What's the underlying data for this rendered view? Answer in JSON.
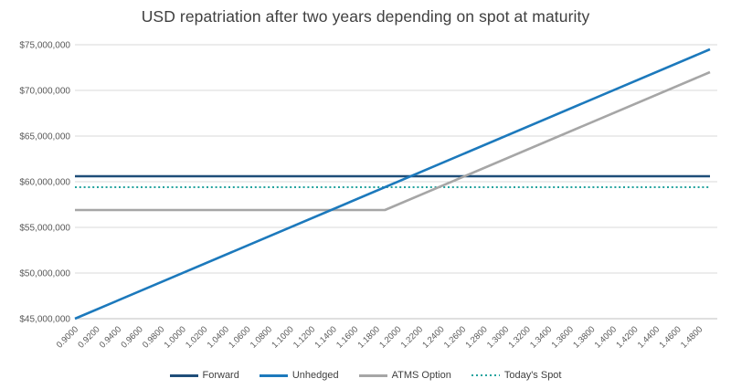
{
  "chart_data": {
    "type": "line",
    "title": "USD repatriation after two years depending on spot at maturity",
    "xlabel": "",
    "ylabel": "",
    "x_min": 0.9,
    "x_max": 1.49,
    "y_min": 45000000,
    "y_max": 75000000,
    "grid": true,
    "legend_position": "bottom",
    "y_ticks": [
      {
        "value": 45000000,
        "label": "$45,000,000"
      },
      {
        "value": 50000000,
        "label": "$50,000,000"
      },
      {
        "value": 55000000,
        "label": "$55,000,000"
      },
      {
        "value": 60000000,
        "label": "$60,000,000"
      },
      {
        "value": 65000000,
        "label": "$65,000,000"
      },
      {
        "value": 70000000,
        "label": "$70,000,000"
      },
      {
        "value": 75000000,
        "label": "$75,000,000"
      }
    ],
    "x_tick_labels": [
      "0.9000",
      "0.9200",
      "0.9400",
      "0.9600",
      "0.9800",
      "1.0000",
      "1.0200",
      "1.0400",
      "1.0600",
      "1.0800",
      "1.1000",
      "1.1200",
      "1.1400",
      "1.1600",
      "1.1800",
      "1.2000",
      "1.2200",
      "1.2400",
      "1.2600",
      "1.2800",
      "1.3000",
      "1.3200",
      "1.3400",
      "1.3600",
      "1.3800",
      "1.4000",
      "1.4200",
      "1.4400",
      "1.4600",
      "1.4800"
    ],
    "series": [
      {
        "name": "Forward",
        "color": "#1F4E79",
        "style": "solid",
        "points": [
          [
            0.9,
            60600000
          ],
          [
            1.49,
            60600000
          ]
        ]
      },
      {
        "name": "Unhedged",
        "color": "#1C79BC",
        "style": "solid",
        "points": [
          [
            0.9,
            45000000
          ],
          [
            1.49,
            74500000
          ]
        ]
      },
      {
        "name": "ATMS Option",
        "color": "#A6A6A6",
        "style": "solid",
        "points": [
          [
            0.9,
            56900000
          ],
          [
            1.188,
            56900000
          ],
          [
            1.49,
            72000000
          ]
        ]
      },
      {
        "name": "Today's Spot",
        "color": "#23A39E",
        "style": "dotted",
        "points": [
          [
            0.9,
            59400000
          ],
          [
            1.49,
            59400000
          ]
        ]
      }
    ],
    "colors": {
      "gridline": "#D9D9D9",
      "axis_line": "#BFBFBF",
      "axis_text": "#595959",
      "title_text": "#404040",
      "legend_text": "#404040"
    }
  }
}
